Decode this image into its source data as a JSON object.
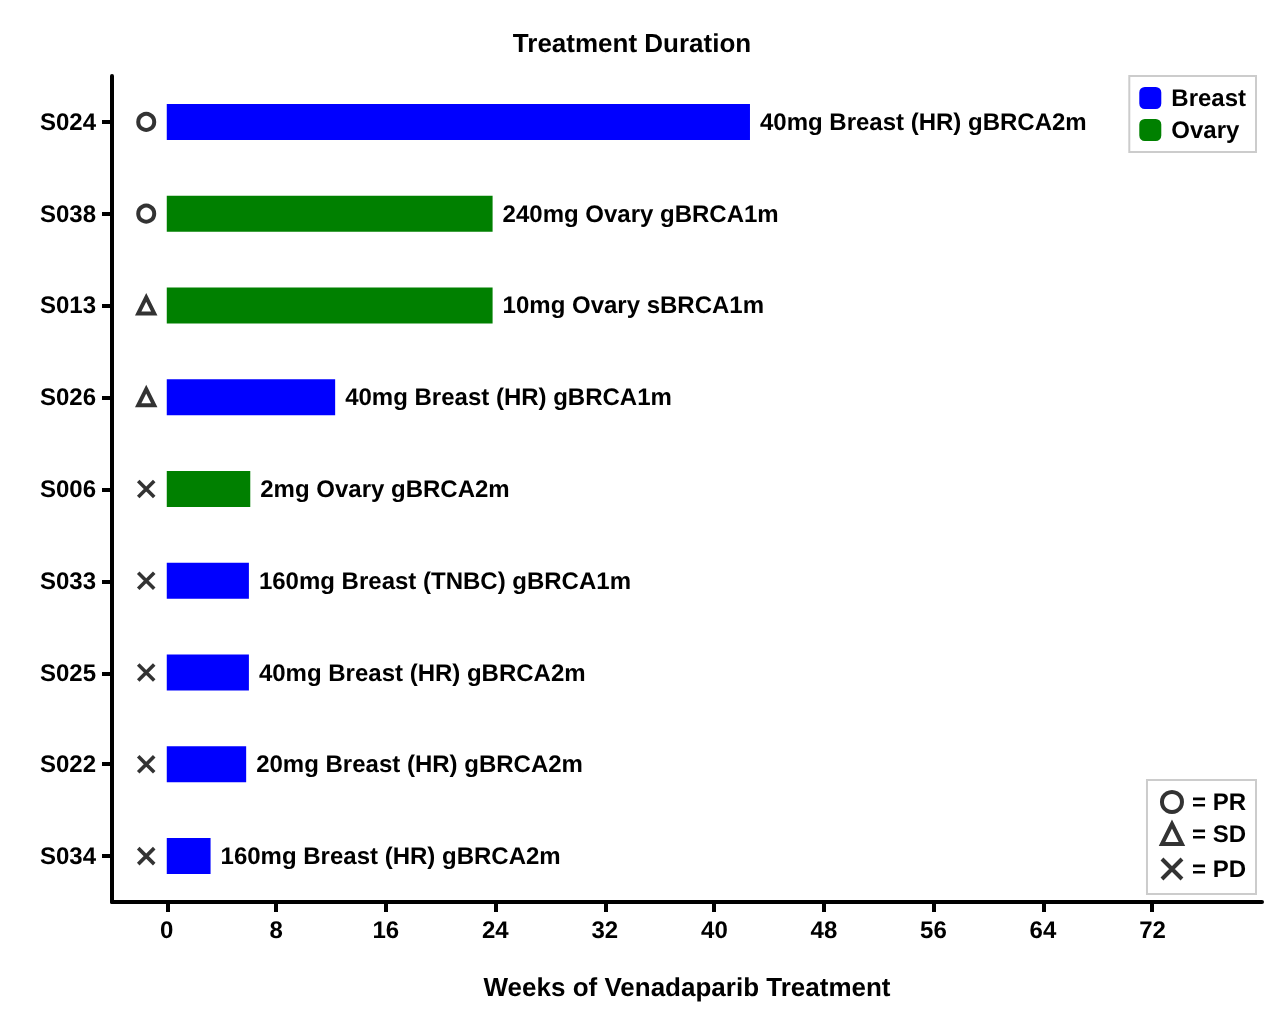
{
  "chart_data": {
    "type": "bar",
    "orientation": "horizontal",
    "stacked": true,
    "title": "Treatment Duration",
    "xlabel": "Weeks of Venadaparib Treatment",
    "categories": [
      "S024",
      "S038",
      "S013",
      "S026",
      "S006",
      "S033",
      "S025",
      "S022",
      "S034"
    ],
    "series": [
      {
        "name": "Breast",
        "color": "#0000ff",
        "values": [
          42.6,
          null,
          null,
          12.3,
          null,
          6.0,
          6.0,
          5.8,
          3.2
        ]
      },
      {
        "name": "Ovary",
        "color": "#008000",
        "values": [
          null,
          23.8,
          23.8,
          null,
          6.1,
          null,
          null,
          null,
          null
        ]
      },
      {
        "name": "= PR",
        "type": "scatter",
        "marker": "circle",
        "color": "#000000",
        "values": [
          -1.5,
          -1.5,
          null,
          null,
          null,
          null,
          null,
          null,
          null
        ]
      },
      {
        "name": "= SD",
        "type": "scatter",
        "marker": "triangle",
        "color": "#000000",
        "values": [
          null,
          null,
          -1.5,
          -1.5,
          null,
          null,
          null,
          null,
          null
        ]
      },
      {
        "name": "= PD",
        "type": "scatter",
        "marker": "cross",
        "color": "#000000",
        "values": [
          null,
          null,
          null,
          null,
          -1.5,
          -1.5,
          -1.5,
          -1.5,
          -1.5
        ]
      }
    ],
    "xlim": [
      -4,
      80
    ],
    "xticks": [
      0,
      8,
      16,
      24,
      32,
      40,
      48,
      56,
      64,
      72
    ],
    "grid": false,
    "legend": "top right",
    "annotations": [
      {
        "text": "40mg Breast (HR) gBRCA2m",
        "x": 42.6,
        "y": "S024"
      },
      {
        "text": "240mg Ovary gBRCA1m",
        "x": 23.8,
        "y": "S038"
      },
      {
        "text": "10mg Ovary sBRCA1m",
        "x": 23.8,
        "y": "S013"
      },
      {
        "text": "40mg Breast (HR) gBRCA1m",
        "x": 12.3,
        "y": "S026"
      },
      {
        "text": "2mg Ovary gBRCA2m",
        "x": 6.1,
        "y": "S006"
      },
      {
        "text": "160mg Breast (TNBC) gBRCA1m",
        "x": 6.0,
        "y": "S033"
      },
      {
        "text": "40mg Breast (HR) gBRCA2m",
        "x": 6.0,
        "y": "S025"
      },
      {
        "text": "20mg Breast (HR) gBRCA2m",
        "x": 5.8,
        "y": "S022"
      },
      {
        "text": "160mg Breast (HR) gBRCA2m",
        "x": 3.2,
        "y": "S034"
      }
    ]
  }
}
